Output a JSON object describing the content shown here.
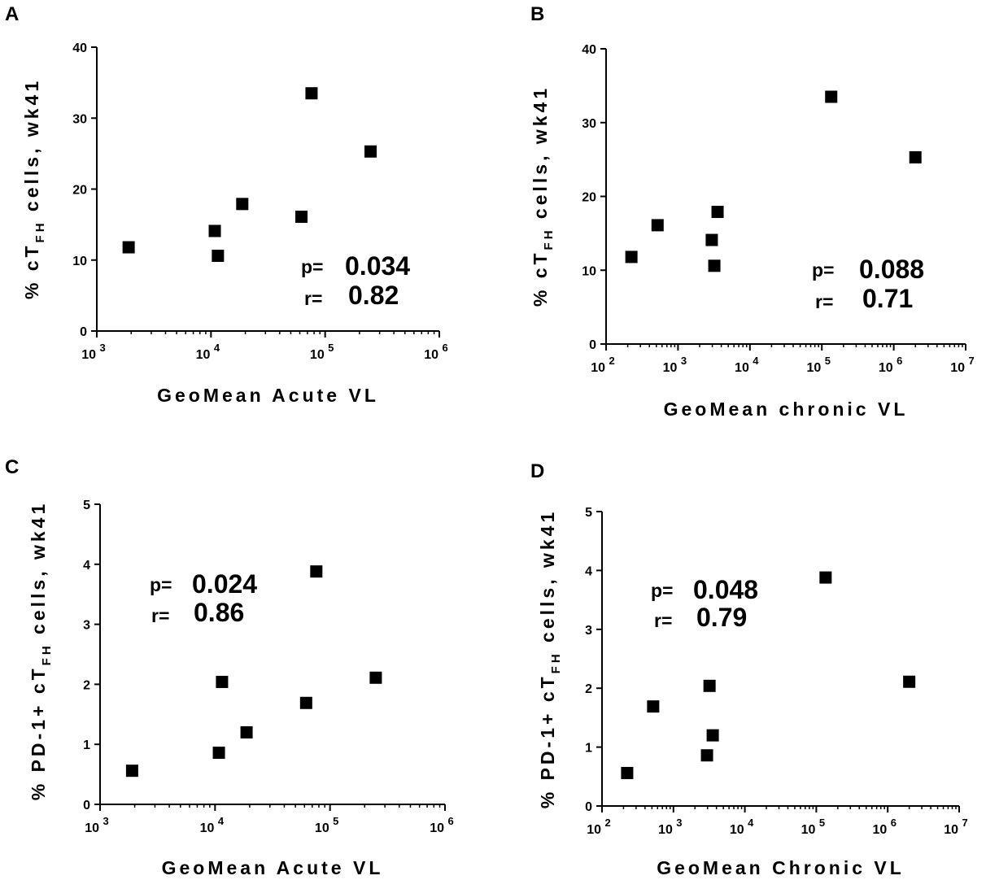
{
  "chart_data": [
    {
      "panel": "A",
      "type": "scatter",
      "xscale": "log",
      "xlabel": "GeoMean Acute VL",
      "ylabel_prefix": "% cT",
      "ylabel_sub": "FH",
      "ylabel_suffix": " cells, wk41",
      "xlim": [
        1000,
        1000000
      ],
      "ylim": [
        0,
        40
      ],
      "xticks": [
        {
          "base": "10",
          "exp": "3"
        },
        {
          "base": "10",
          "exp": "4"
        },
        {
          "base": "10",
          "exp": "5"
        },
        {
          "base": "10",
          "exp": "6"
        }
      ],
      "yticks": [
        "0",
        "10",
        "20",
        "30",
        "40"
      ],
      "x": [
        1900,
        10800,
        11500,
        18800,
        62000,
        76000,
        250000
      ],
      "y": [
        11.8,
        14.1,
        10.6,
        17.9,
        16.1,
        33.5,
        25.3
      ],
      "p_label": "p=",
      "p_value": "0.034",
      "r_label": "r=",
      "r_value": "0.82"
    },
    {
      "panel": "B",
      "type": "scatter",
      "xscale": "log",
      "xlabel": "GeoMean chronic VL",
      "ylabel_prefix": "% cT",
      "ylabel_sub": "FH",
      "ylabel_suffix": " cells, wk41",
      "xlim": [
        100,
        10000000
      ],
      "ylim": [
        0,
        40
      ],
      "xticks": [
        {
          "base": "10",
          "exp": "2"
        },
        {
          "base": "10",
          "exp": "3"
        },
        {
          "base": "10",
          "exp": "4"
        },
        {
          "base": "10",
          "exp": "5"
        },
        {
          "base": "10",
          "exp": "6"
        },
        {
          "base": "10",
          "exp": "7"
        }
      ],
      "yticks": [
        "0",
        "10",
        "20",
        "30",
        "40"
      ],
      "x": [
        225,
        520,
        2950,
        3200,
        3550,
        135000,
        2000000
      ],
      "y": [
        11.8,
        16.1,
        14.1,
        10.6,
        17.9,
        33.5,
        25.3
      ],
      "p_label": "p=",
      "p_value": "0.088",
      "r_label": "r=",
      "r_value": "0.71"
    },
    {
      "panel": "C",
      "type": "scatter",
      "xscale": "log",
      "xlabel": "GeoMean Acute VL",
      "ylabel_prefix": "% PD-1+ cT",
      "ylabel_sub": "FH",
      "ylabel_suffix": " cells, wk41",
      "xlim": [
        1000,
        1000000
      ],
      "ylim": [
        0,
        5
      ],
      "xticks": [
        {
          "base": "10",
          "exp": "3"
        },
        {
          "base": "10",
          "exp": "4"
        },
        {
          "base": "10",
          "exp": "5"
        },
        {
          "base": "10",
          "exp": "6"
        }
      ],
      "yticks": [
        "0",
        "1",
        "2",
        "3",
        "4",
        "5"
      ],
      "x": [
        1900,
        10800,
        11500,
        18800,
        62000,
        76000,
        250000
      ],
      "y": [
        0.56,
        0.86,
        2.04,
        1.2,
        1.69,
        3.88,
        2.11
      ],
      "p_label": "p=",
      "p_value": "0.024",
      "r_label": "r=",
      "r_value": "0.86"
    },
    {
      "panel": "D",
      "type": "scatter",
      "xscale": "log",
      "xlabel": "GeoMean Chronic VL",
      "ylabel_prefix": "% PD-1+ cT",
      "ylabel_sub": "FH",
      "ylabel_suffix": " cells, wk41",
      "xlim": [
        100,
        10000000
      ],
      "ylim": [
        0,
        5
      ],
      "xticks": [
        {
          "base": "10",
          "exp": "2"
        },
        {
          "base": "10",
          "exp": "3"
        },
        {
          "base": "10",
          "exp": "4"
        },
        {
          "base": "10",
          "exp": "5"
        },
        {
          "base": "10",
          "exp": "6"
        },
        {
          "base": "10",
          "exp": "7"
        }
      ],
      "yticks": [
        "0",
        "1",
        "2",
        "3",
        "4",
        "5"
      ],
      "x": [
        225,
        520,
        2950,
        3200,
        3550,
        135000,
        2000000
      ],
      "y": [
        0.56,
        1.69,
        0.86,
        2.04,
        1.2,
        3.88,
        2.11
      ],
      "p_label": "p=",
      "p_value": "0.048",
      "r_label": "r=",
      "r_value": "0.79"
    }
  ]
}
